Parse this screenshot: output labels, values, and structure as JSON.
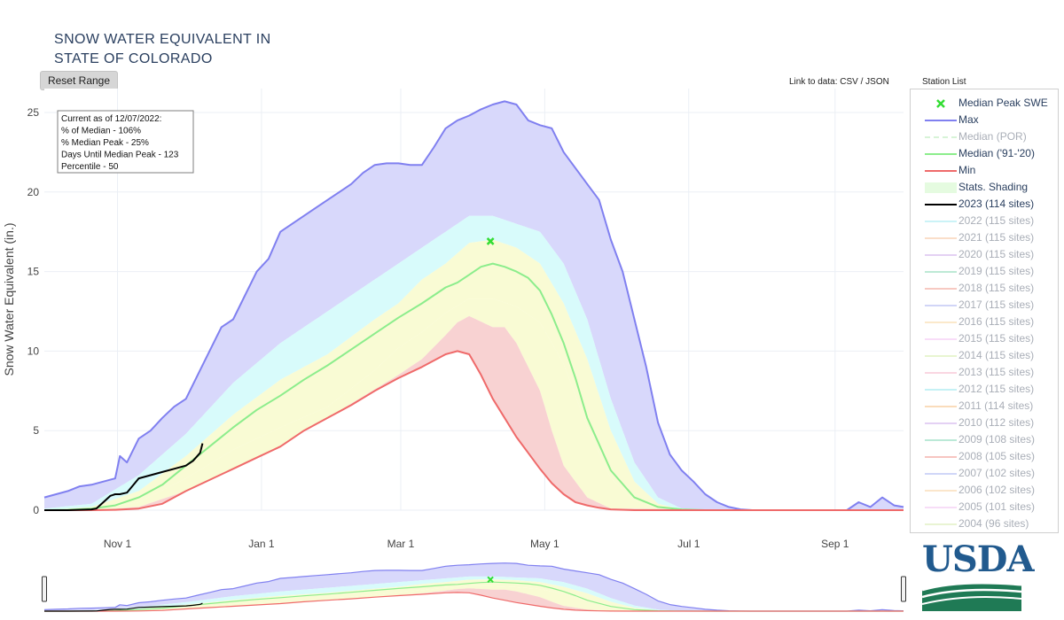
{
  "title": {
    "line1": "SNOW WATER EQUIVALENT IN",
    "line2": "STATE OF COLORADO"
  },
  "buttons": {
    "reset_range": "Reset Range"
  },
  "links": {
    "prefix": "Link to data: ",
    "csv": "CSV",
    "separator": " / ",
    "json": "JSON",
    "station_list": "Station List"
  },
  "info_box": {
    "lines": [
      "Current as of 12/07/2022:",
      "% of Median - 106%",
      "% Median Peak - 25%",
      "Days Until Median Peak - 123",
      "Percentile - 50"
    ]
  },
  "logo": {
    "text": "USDA"
  },
  "colors": {
    "max": "#8080f0",
    "median_por": "#a8e6a8",
    "median_9120": "#8ced8c",
    "min": "#ef6a6a",
    "current": "#000000",
    "peak_marker": "#33dd33",
    "band_max": "#d8d8fb",
    "band_high": "#d8fbfb",
    "band_mid": "#f9fbd4",
    "band_low": "#f8d2d2",
    "accent_text": "#2a3f5f"
  },
  "legend": {
    "items": [
      {
        "label": "Median Peak SWE",
        "color": "#33dd33",
        "kind": "marker",
        "faded": false
      },
      {
        "label": "Max",
        "color": "#8080f0",
        "kind": "line",
        "faded": false
      },
      {
        "label": "Median (POR)",
        "color": "#a8e6a8",
        "kind": "dash",
        "faded": true
      },
      {
        "label": "Median ('91-'20)",
        "color": "#8ced8c",
        "kind": "line",
        "faded": false
      },
      {
        "label": "Min",
        "color": "#ef6a6a",
        "kind": "line",
        "faded": false
      },
      {
        "label": "Stats. Shading",
        "color": "#e5fbe0",
        "kind": "box",
        "faded": false
      },
      {
        "label": "2023 (114 sites)",
        "color": "#000000",
        "kind": "line",
        "faded": false
      },
      {
        "label": "2022 (115 sites)",
        "color": "#8ee6ee",
        "kind": "line",
        "faded": true
      },
      {
        "label": "2021 (115 sites)",
        "color": "#f5b889",
        "kind": "line",
        "faded": true
      },
      {
        "label": "2020 (115 sites)",
        "color": "#c59be6",
        "kind": "line",
        "faded": true
      },
      {
        "label": "2019 (115 sites)",
        "color": "#6fd0a3",
        "kind": "line",
        "faded": true
      },
      {
        "label": "2018 (115 sites)",
        "color": "#ef8a7a",
        "kind": "line",
        "faded": true
      },
      {
        "label": "2017 (115 sites)",
        "color": "#9aa4ef",
        "kind": "line",
        "faded": true
      },
      {
        "label": "2016 (115 sites)",
        "color": "#f7cf8e",
        "kind": "line",
        "faded": true
      },
      {
        "label": "2015 (115 sites)",
        "color": "#f0b6f0",
        "kind": "line",
        "faded": true
      },
      {
        "label": "2014 (115 sites)",
        "color": "#cde99a",
        "kind": "line",
        "faded": true
      },
      {
        "label": "2013 (115 sites)",
        "color": "#f4a6c0",
        "kind": "line",
        "faded": true
      },
      {
        "label": "2012 (115 sites)",
        "color": "#7fe2ea",
        "kind": "line",
        "faded": true
      },
      {
        "label": "2011 (114 sites)",
        "color": "#f5b26b",
        "kind": "line",
        "faded": true
      },
      {
        "label": "2010 (112 sites)",
        "color": "#c49be8",
        "kind": "line",
        "faded": true
      },
      {
        "label": "2009 (108 sites)",
        "color": "#69cfa8",
        "kind": "line",
        "faded": true
      },
      {
        "label": "2008 (105 sites)",
        "color": "#ef7f77",
        "kind": "line",
        "faded": true
      },
      {
        "label": "2007 (102 sites)",
        "color": "#98a6f0",
        "kind": "line",
        "faded": true
      },
      {
        "label": "2006 (102 sites)",
        "color": "#f7c98e",
        "kind": "line",
        "faded": true
      },
      {
        "label": "2005 (101 sites)",
        "color": "#efb4ee",
        "kind": "line",
        "faded": true
      },
      {
        "label": "2004 (96 sites)",
        "color": "#cfe8a0",
        "kind": "line",
        "faded": true
      }
    ]
  },
  "chart_data": {
    "type": "line",
    "title": "SNOW WATER EQUIVALENT IN STATE OF COLORADO",
    "ylabel": "Snow Water Equivalent (in.)",
    "xlabel": "",
    "ylim": [
      0,
      26.5
    ],
    "xlim": [
      "Oct 1",
      "Sep 30"
    ],
    "y_ticks": [
      0,
      5,
      10,
      15,
      20,
      25
    ],
    "x_ticks": [
      {
        "label": "Nov 1",
        "day": 31
      },
      {
        "label": "Jan 1",
        "day": 92
      },
      {
        "label": "Mar 1",
        "day": 151
      },
      {
        "label": "May 1",
        "day": 212
      },
      {
        "label": "Jul 1",
        "day": 273
      },
      {
        "label": "Sep 1",
        "day": 335
      }
    ],
    "grid": true,
    "legend_position": "right",
    "x_unit": "days since Oct 1",
    "median_peak": {
      "day": 189,
      "value": 16.9
    },
    "series": [
      {
        "name": "Max",
        "x": [
          0,
          5,
          10,
          15,
          20,
          25,
          30,
          32,
          35,
          40,
          45,
          50,
          55,
          60,
          65,
          70,
          75,
          80,
          85,
          90,
          95,
          100,
          105,
          110,
          115,
          120,
          125,
          130,
          135,
          140,
          145,
          150,
          155,
          160,
          165,
          170,
          175,
          180,
          185,
          190,
          195,
          200,
          205,
          210,
          215,
          220,
          225,
          230,
          235,
          240,
          245,
          250,
          255,
          260,
          265,
          270,
          275,
          280,
          285,
          290,
          295,
          300,
          310,
          320,
          330,
          340,
          345,
          350,
          355,
          360,
          364
        ],
        "y": [
          0.8,
          1.0,
          1.2,
          1.5,
          1.6,
          1.8,
          2.0,
          3.4,
          3.0,
          4.5,
          5.0,
          5.8,
          6.5,
          7.0,
          8.5,
          10.0,
          11.5,
          12.0,
          13.5,
          15.0,
          15.8,
          17.5,
          18.0,
          18.5,
          19.0,
          19.5,
          20.0,
          20.5,
          21.2,
          21.7,
          21.8,
          21.8,
          21.7,
          21.7,
          22.8,
          24.0,
          24.5,
          24.8,
          25.2,
          25.5,
          25.7,
          25.5,
          24.5,
          24.2,
          24.0,
          22.5,
          21.5,
          20.5,
          19.5,
          17.0,
          15.0,
          12.0,
          9.0,
          5.5,
          3.5,
          2.5,
          1.8,
          1.0,
          0.5,
          0.2,
          0.05,
          0,
          0,
          0,
          0,
          0,
          0.5,
          0.2,
          0.8,
          0.3,
          0.2
        ]
      },
      {
        "name": "Median ('91-'20)",
        "x": [
          0,
          10,
          20,
          30,
          40,
          50,
          60,
          70,
          80,
          90,
          100,
          110,
          120,
          130,
          140,
          150,
          160,
          170,
          175,
          180,
          185,
          190,
          195,
          200,
          205,
          210,
          215,
          220,
          225,
          230,
          240,
          250,
          260,
          270,
          280,
          364
        ],
        "y": [
          0,
          0.02,
          0.1,
          0.3,
          0.8,
          1.6,
          2.8,
          4.0,
          5.2,
          6.3,
          7.2,
          8.2,
          9.1,
          10.1,
          11.1,
          12.1,
          13.0,
          14.0,
          14.3,
          14.8,
          15.3,
          15.5,
          15.3,
          15.0,
          14.6,
          13.8,
          12.3,
          10.5,
          8.3,
          5.8,
          2.5,
          0.8,
          0.2,
          0.05,
          0,
          0
        ]
      },
      {
        "name": "Min",
        "x": [
          0,
          10,
          20,
          30,
          40,
          50,
          60,
          70,
          80,
          90,
          100,
          110,
          120,
          130,
          140,
          150,
          160,
          170,
          175,
          180,
          185,
          190,
          195,
          200,
          205,
          210,
          215,
          220,
          225,
          230,
          235,
          240,
          250,
          260,
          364
        ],
        "y": [
          0,
          0,
          0,
          0.02,
          0.1,
          0.4,
          1.2,
          1.9,
          2.6,
          3.3,
          4.0,
          5.0,
          5.8,
          6.6,
          7.5,
          8.3,
          9.0,
          9.8,
          10.0,
          9.8,
          8.5,
          7.0,
          5.8,
          4.6,
          3.6,
          2.6,
          1.7,
          1.0,
          0.5,
          0.3,
          0.15,
          0.05,
          0,
          0,
          0
        ]
      },
      {
        "name": "2023 (114 sites)",
        "x": [
          0,
          10,
          20,
          22,
          25,
          28,
          30,
          32,
          35,
          40,
          45,
          50,
          55,
          60,
          63,
          66,
          67
        ],
        "y": [
          0,
          0,
          0.05,
          0.1,
          0.5,
          0.9,
          1.0,
          1.0,
          1.1,
          2.0,
          2.2,
          2.4,
          2.6,
          2.8,
          3.1,
          3.6,
          4.2
        ]
      }
    ],
    "bands": [
      {
        "name": "Stats. Shading (upper)",
        "x": [
          0,
          20,
          40,
          60,
          80,
          100,
          120,
          140,
          150,
          160,
          170,
          180,
          190,
          200,
          210,
          220,
          230,
          240,
          250,
          260,
          270,
          280,
          364
        ],
        "y": [
          0.1,
          0.4,
          2.2,
          4.8,
          8.0,
          10.5,
          12.5,
          14.5,
          15.5,
          16.5,
          17.5,
          18.5,
          18.5,
          18.0,
          17.5,
          15.5,
          12.0,
          7.0,
          3.0,
          0.8,
          0.1,
          0,
          0
        ]
      },
      {
        "name": "Stats. Shading (mid-upper)",
        "x": [
          0,
          20,
          40,
          60,
          80,
          100,
          120,
          140,
          150,
          160,
          170,
          180,
          190,
          200,
          210,
          220,
          230,
          240,
          250,
          260,
          270,
          364
        ],
        "y": [
          0,
          0.2,
          1.2,
          3.4,
          6.0,
          8.2,
          9.8,
          12.0,
          13.0,
          14.5,
          15.5,
          16.8,
          17.0,
          16.5,
          15.5,
          13.0,
          9.5,
          5.0,
          1.8,
          0.4,
          0.05,
          0
        ]
      },
      {
        "name": "Stats. Shading (mid-lower)",
        "x": [
          0,
          20,
          40,
          60,
          80,
          100,
          120,
          140,
          150,
          160,
          170,
          180,
          190,
          200,
          210,
          220,
          230,
          240,
          250,
          260,
          364
        ],
        "y": [
          0,
          0.05,
          0.5,
          2.0,
          3.8,
          5.2,
          6.5,
          8.8,
          10.2,
          11.2,
          12.4,
          13.3,
          13.3,
          12.8,
          11.8,
          9.2,
          5.2,
          2.0,
          0.6,
          0.1,
          0
        ]
      },
      {
        "name": "Stats. Shading (lower)",
        "x": [
          0,
          20,
          40,
          60,
          80,
          100,
          120,
          140,
          150,
          160,
          170,
          175,
          180,
          190,
          195,
          200,
          205,
          210,
          215,
          220,
          230,
          240,
          364
        ],
        "y": [
          0,
          0,
          0.2,
          1.2,
          2.6,
          4.0,
          5.8,
          7.6,
          8.5,
          9.5,
          11.0,
          11.8,
          12.2,
          11.5,
          11.5,
          10.5,
          9.0,
          7.5,
          5.0,
          2.8,
          0.8,
          0.1,
          0
        ]
      }
    ]
  }
}
